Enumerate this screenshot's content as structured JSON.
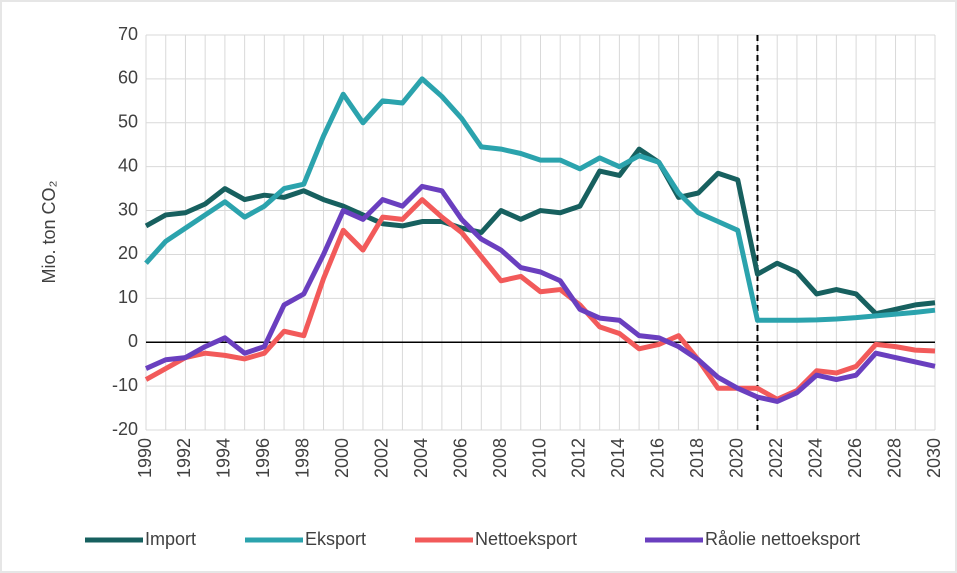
{
  "chart_data": {
    "type": "line",
    "ylabel": "Mio. ton CO₂",
    "x": [
      1990,
      1991,
      1992,
      1993,
      1994,
      1995,
      1996,
      1997,
      1998,
      1999,
      2000,
      2001,
      2002,
      2003,
      2004,
      2005,
      2006,
      2007,
      2008,
      2009,
      2010,
      2011,
      2012,
      2013,
      2014,
      2015,
      2016,
      2017,
      2018,
      2019,
      2020,
      2021,
      2022,
      2023,
      2024,
      2025,
      2026,
      2027,
      2028,
      2029,
      2030
    ],
    "xlim": [
      1990,
      2030
    ],
    "xticks": [
      1990,
      1992,
      1994,
      1996,
      1998,
      2000,
      2002,
      2004,
      2006,
      2008,
      2010,
      2012,
      2014,
      2016,
      2018,
      2020,
      2022,
      2024,
      2026,
      2028,
      2030
    ],
    "ylim": [
      -20,
      70
    ],
    "yticks": [
      -20,
      -10,
      0,
      10,
      20,
      30,
      40,
      50,
      60,
      70
    ],
    "grid": true,
    "vline": 2021,
    "legend": "bottom",
    "series": [
      {
        "name": "Import",
        "color": "#17605f",
        "values": [
          26.5,
          29,
          29.5,
          31.5,
          35,
          32.5,
          33.5,
          33,
          34.5,
          32.5,
          31,
          29,
          27,
          26.5,
          27.5,
          27.5,
          26,
          25,
          30,
          28,
          30,
          29.5,
          31,
          39,
          38,
          44,
          41,
          33,
          34,
          38.5,
          37,
          15.5,
          18,
          16,
          11,
          12,
          11,
          6.5,
          7.5,
          8.5,
          9
        ]
      },
      {
        "name": "Eksport",
        "color": "#2ba3ad",
        "values": [
          18,
          23,
          26,
          29,
          32,
          28.5,
          31,
          35,
          36,
          47,
          56.5,
          50,
          55,
          54.5,
          60,
          56,
          51,
          44.5,
          44,
          43,
          41.5,
          41.5,
          39.5,
          42,
          40,
          42.5,
          41,
          34,
          29.5,
          27.5,
          25.5,
          5,
          5,
          5,
          5.1,
          5.3,
          5.6,
          6,
          6.4,
          6.8,
          7.3
        ]
      },
      {
        "name": "Nettoeksport",
        "color": "#f25a5a",
        "values": [
          -8.5,
          -6,
          -3.5,
          -2.5,
          -3,
          -3.8,
          -2.5,
          2.5,
          1.5,
          14.5,
          25.5,
          21,
          28.5,
          28,
          32.5,
          28.5,
          25,
          19.5,
          14,
          15,
          11.5,
          12,
          8.5,
          3.5,
          2,
          -1.5,
          -0.5,
          1.5,
          -4,
          -10.5,
          -10.5,
          -10.5,
          -13,
          -11,
          -6.5,
          -7,
          -5.5,
          -0.5,
          -1,
          -1.8,
          -2
        ]
      },
      {
        "name": "Råolie nettoeksport",
        "color": "#6a3fbf",
        "values": [
          -6,
          -4,
          -3.5,
          -1,
          1,
          -2.5,
          -1,
          8.5,
          11,
          20,
          30,
          28,
          32.5,
          31,
          35.5,
          34.5,
          28,
          23.5,
          21,
          17,
          16,
          14,
          7.5,
          5.5,
          5,
          1.5,
          1,
          -1,
          -4,
          -8,
          -10.5,
          -12.5,
          -13.5,
          -11.5,
          -7.5,
          -8.5,
          -7.5,
          -2.5,
          -3.5,
          -4.5,
          -5.5
        ]
      }
    ]
  }
}
